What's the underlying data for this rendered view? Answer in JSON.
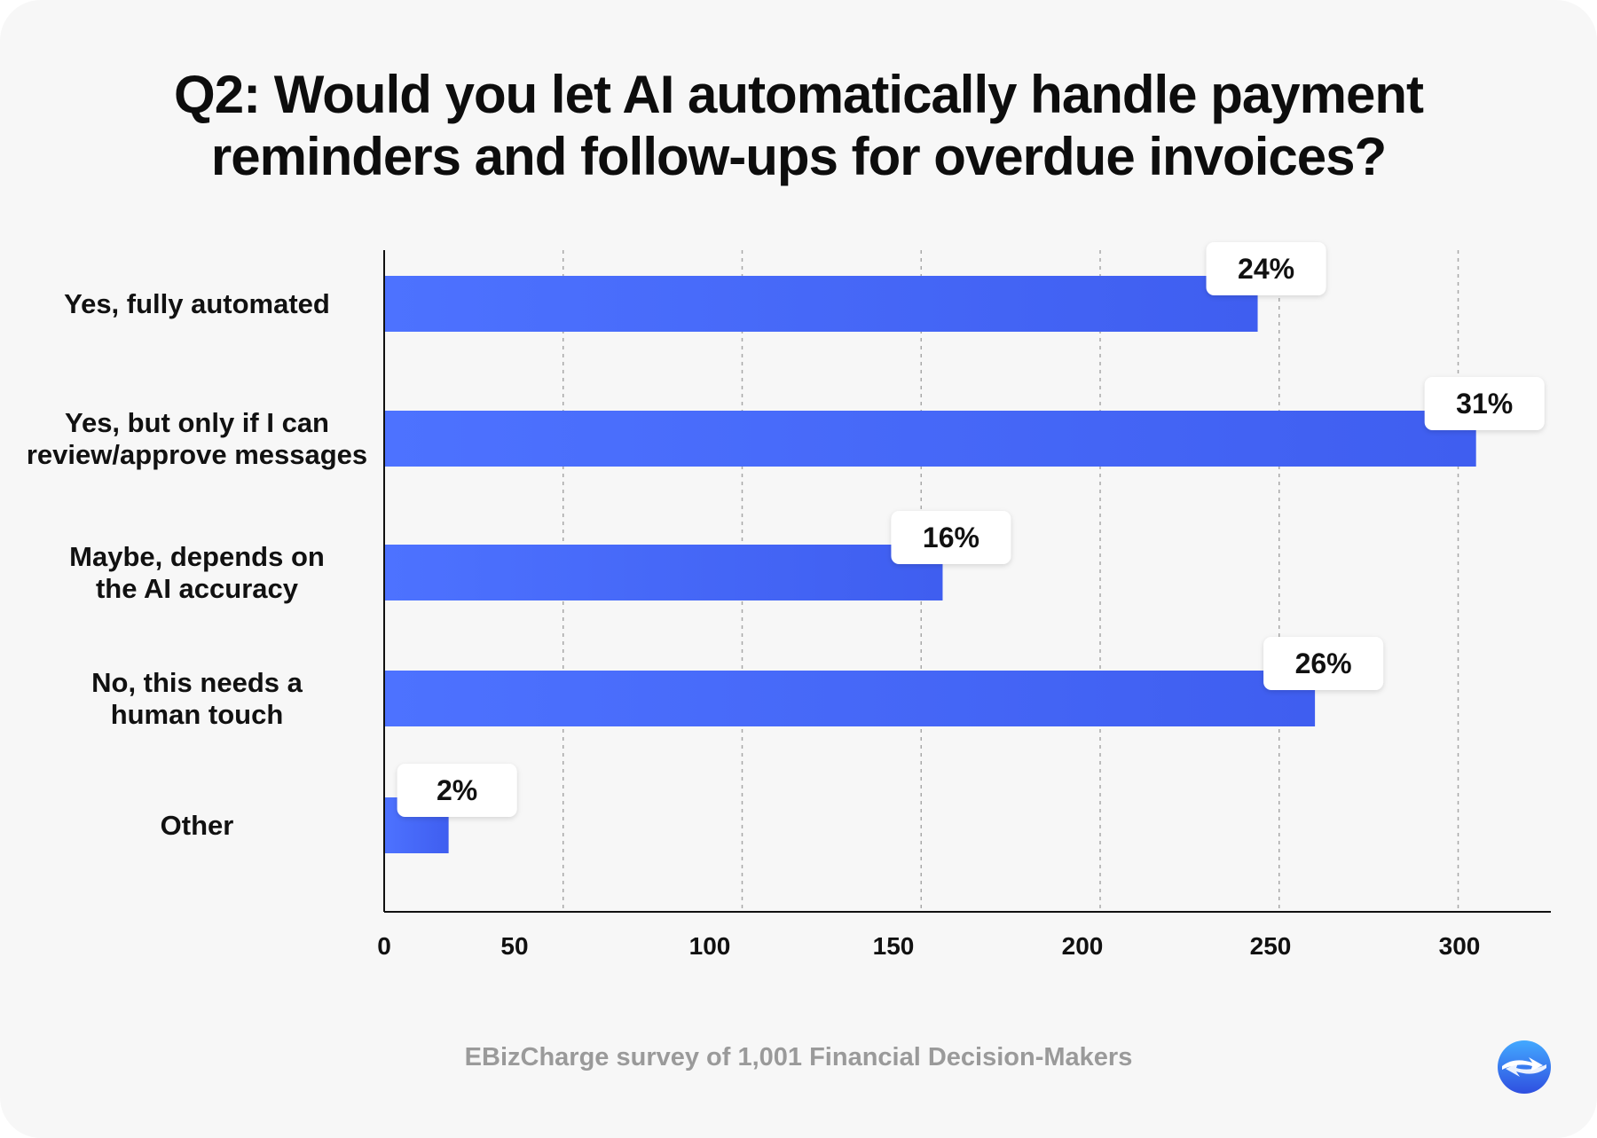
{
  "chart_data": {
    "type": "bar",
    "orientation": "horizontal",
    "title": "Q2: Would you let AI automatically handle payment reminders and follow-ups for overdue invoices?",
    "title_lines": [
      "Q2: Would you let AI automatically handle payment",
      "reminders and follow-ups for overdue invoices?"
    ],
    "categories": [
      [
        "Yes, fully automated"
      ],
      [
        "Yes, but only if I can",
        "review/approve messages"
      ],
      [
        "Maybe, depends on",
        "the AI accuracy"
      ],
      [
        "No, this needs a",
        "human touch"
      ],
      [
        "Other"
      ]
    ],
    "values": [
      244,
      305,
      156,
      260,
      18
    ],
    "data_labels": [
      "24%",
      "31%",
      "16%",
      "26%",
      "2%"
    ],
    "xlim": [
      0,
      325
    ],
    "xticks": [
      0,
      50,
      100,
      150,
      200,
      250,
      300
    ],
    "xtick_labels": [
      "0",
      "50",
      "100",
      "150",
      "200",
      "250",
      "300"
    ],
    "gridlines": [
      50,
      100,
      150,
      200,
      250,
      300
    ],
    "grid": "vertical-dashed",
    "bar_color_start": "#4d72ff",
    "bar_color_end": "#3f5ef0"
  },
  "footer": {
    "text": "EBizCharge survey of 1,001 Financial Decision-Makers"
  },
  "logo": {
    "icon": "ebizcharge-logo-icon",
    "color": "#3b6cf0"
  }
}
